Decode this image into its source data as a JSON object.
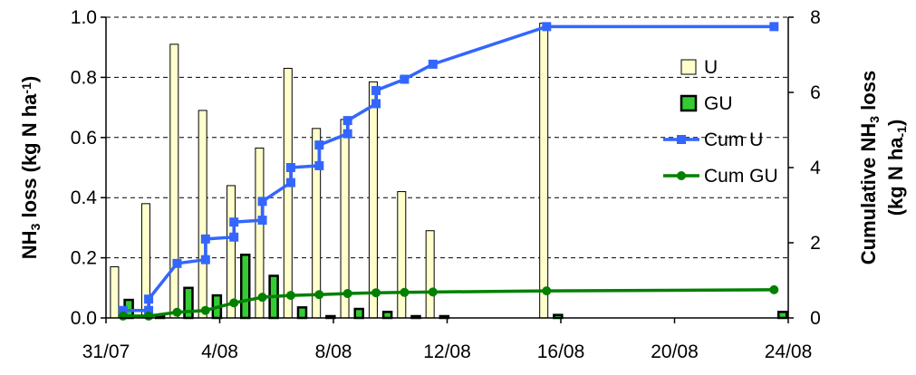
{
  "chart_data": {
    "type": "bar",
    "x_axis": {
      "type": "date",
      "tick_labels": [
        "31/07",
        "4/08",
        "8/08",
        "12/08",
        "16/08",
        "20/08",
        "24/08"
      ],
      "tick_days": [
        0,
        4,
        8,
        12,
        16,
        20,
        24
      ],
      "range_days": [
        0,
        24
      ]
    },
    "y_left": {
      "label_parts": [
        "NH",
        "3",
        " loss (kg N ha",
        "-1",
        ")"
      ],
      "ylim": [
        0,
        1.0
      ],
      "ticks": [
        "0.0",
        "0.2",
        "0.4",
        "0.6",
        "0.8",
        "1.0"
      ],
      "tick_values": [
        0,
        0.2,
        0.4,
        0.6,
        0.8,
        1.0
      ]
    },
    "y_right": {
      "label_line1_parts": [
        "Cumulative NH",
        "3",
        " loss"
      ],
      "label_line2_parts": [
        "(kg N ha",
        "-1",
        ")"
      ],
      "ylim": [
        0,
        8
      ],
      "ticks": [
        "0",
        "2",
        "4",
        "6",
        "8"
      ],
      "tick_values": [
        0,
        2,
        4,
        6,
        8
      ]
    },
    "grid": "horizontal dashed",
    "legend_placement": "right",
    "series": [
      {
        "name": "U",
        "kind": "bar",
        "axis": "left",
        "color": "#FFFFCC",
        "points": [
          [
            0.3,
            0.17
          ],
          [
            1.4,
            0.38
          ],
          [
            2.4,
            0.91
          ],
          [
            3.4,
            0.69
          ],
          [
            4.4,
            0.44
          ],
          [
            5.4,
            0.565
          ],
          [
            6.4,
            0.83
          ],
          [
            7.4,
            0.63
          ],
          [
            8.4,
            0.66
          ],
          [
            9.4,
            0.785
          ],
          [
            10.4,
            0.42
          ],
          [
            11.4,
            0.29
          ],
          [
            15.4,
            0.98
          ]
        ]
      },
      {
        "name": "GU",
        "kind": "bar",
        "axis": "left",
        "color": "#33CC33",
        "points": [
          [
            0.8,
            0.06
          ],
          [
            1.9,
            0.0
          ],
          [
            2.9,
            0.1
          ],
          [
            3.9,
            0.075
          ],
          [
            4.9,
            0.21
          ],
          [
            5.9,
            0.14
          ],
          [
            6.9,
            0.035
          ],
          [
            7.9,
            0.0
          ],
          [
            8.9,
            0.03
          ],
          [
            9.9,
            0.02
          ],
          [
            10.9,
            0.0
          ],
          [
            11.9,
            0.0
          ],
          [
            15.9,
            0.01
          ],
          [
            23.8,
            0.02
          ]
        ]
      },
      {
        "name": "Cum U",
        "kind": "line",
        "axis": "right",
        "color": "#3366FF",
        "marker": "square",
        "points": [
          [
            0.6,
            0.2
          ],
          [
            1.5,
            0.2
          ],
          [
            1.5,
            0.5
          ],
          [
            2.5,
            1.45
          ],
          [
            3.5,
            1.55
          ],
          [
            3.5,
            2.1
          ],
          [
            4.5,
            2.15
          ],
          [
            4.5,
            2.55
          ],
          [
            5.5,
            2.6
          ],
          [
            5.5,
            3.1
          ],
          [
            6.5,
            3.6
          ],
          [
            6.5,
            4.0
          ],
          [
            7.5,
            4.05
          ],
          [
            7.5,
            4.6
          ],
          [
            8.5,
            4.9
          ],
          [
            8.5,
            5.25
          ],
          [
            9.5,
            5.7
          ],
          [
            9.5,
            6.05
          ],
          [
            10.5,
            6.35
          ],
          [
            11.5,
            6.75
          ],
          [
            15.5,
            7.75
          ],
          [
            23.5,
            7.75
          ]
        ]
      },
      {
        "name": "Cum GU",
        "kind": "line",
        "axis": "right",
        "color": "#008000",
        "marker": "circle",
        "points": [
          [
            0.6,
            0.05
          ],
          [
            1.5,
            0.05
          ],
          [
            2.5,
            0.15
          ],
          [
            3.5,
            0.2
          ],
          [
            4.5,
            0.4
          ],
          [
            5.5,
            0.55
          ],
          [
            6.5,
            0.6
          ],
          [
            7.5,
            0.62
          ],
          [
            8.5,
            0.65
          ],
          [
            9.5,
            0.67
          ],
          [
            10.5,
            0.68
          ],
          [
            11.5,
            0.69
          ],
          [
            15.5,
            0.72
          ],
          [
            23.5,
            0.75
          ]
        ]
      }
    ]
  }
}
